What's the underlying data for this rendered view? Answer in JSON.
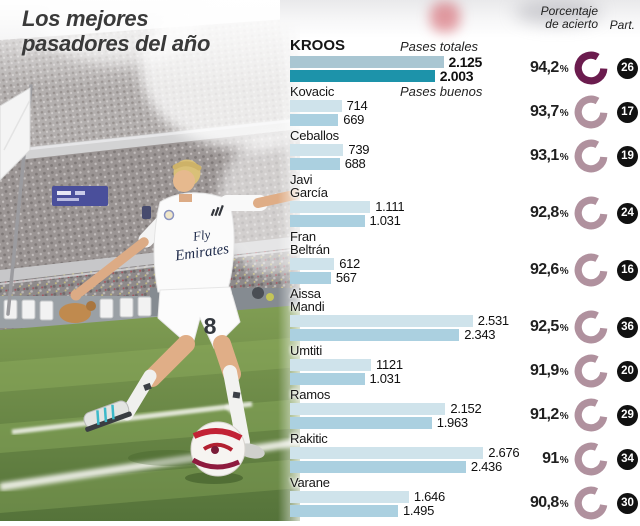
{
  "title": {
    "line1": "Los mejores",
    "line2": "pasadores del año"
  },
  "header": {
    "percent_line1": "Porcentaje",
    "percent_line2": "de acierto",
    "part": "Part."
  },
  "percent_symbol": "%",
  "photo": {
    "jersey_sponsor_line1": "Fly",
    "jersey_sponsor_line2": "Emirates",
    "shorts_number": "8"
  },
  "colors": {
    "bar_totales": "#cfe3eb",
    "bar_buenos": "#abd0e0",
    "bar_totales_highlight": "#a9c6d2",
    "bar_buenos_highlight": "#1d93aa",
    "ring": "#b0919e",
    "ring_highlight": "#6b1c4e",
    "badge_bg": "#111111",
    "badge_text": "#ffffff"
  },
  "chart": {
    "players": [
      {
        "name_lines": [
          "KROOS"
        ],
        "annotation": "Pases totales",
        "totales_label": "2.125",
        "buenos_label": "2.003",
        "totales": 2125,
        "buenos": 2003,
        "pct_label": "94,2",
        "pct": 94.2,
        "part": "26",
        "highlight": true
      },
      {
        "name_lines": [
          "Kovacic"
        ],
        "annotation": "Pases buenos",
        "totales_label": "714",
        "buenos_label": "669",
        "totales": 714,
        "buenos": 669,
        "pct_label": "93,7",
        "pct": 93.7,
        "part": "17",
        "highlight": false
      },
      {
        "name_lines": [
          "Ceballos"
        ],
        "totales_label": "739",
        "buenos_label": "688",
        "totales": 739,
        "buenos": 688,
        "pct_label": "93,1",
        "pct": 93.1,
        "part": "19",
        "highlight": false
      },
      {
        "name_lines": [
          "Javi",
          "García"
        ],
        "totales_label": "1.111",
        "buenos_label": "1.031",
        "totales": 1111,
        "buenos": 1031,
        "pct_label": "92,8",
        "pct": 92.8,
        "part": "24",
        "highlight": false
      },
      {
        "name_lines": [
          "Fran",
          "Beltrán"
        ],
        "totales_label": "612",
        "buenos_label": "567",
        "totales": 612,
        "buenos": 567,
        "pct_label": "92,6",
        "pct": 92.6,
        "part": "16",
        "highlight": false
      },
      {
        "name_lines": [
          "Aissa",
          "Mandi"
        ],
        "totales_label": "2.531",
        "buenos_label": "2.343",
        "totales": 2531,
        "buenos": 2343,
        "pct_label": "92,5",
        "pct": 92.5,
        "part": "36",
        "highlight": false
      },
      {
        "name_lines": [
          "Umtiti"
        ],
        "totales_label": "1121",
        "buenos_label": "1.031",
        "totales": 1121,
        "buenos": 1031,
        "pct_label": "91,9",
        "pct": 91.9,
        "part": "20",
        "highlight": false
      },
      {
        "name_lines": [
          "Ramos"
        ],
        "totales_label": "2.152",
        "buenos_label": "1.963",
        "totales": 2152,
        "buenos": 1963,
        "pct_label": "91,2",
        "pct": 91.2,
        "part": "29",
        "highlight": false
      },
      {
        "name_lines": [
          "Rakitic"
        ],
        "totales_label": "2.676",
        "buenos_label": "2.436",
        "totales": 2676,
        "buenos": 2436,
        "pct_label": "91",
        "pct": 91,
        "part": "34",
        "highlight": false
      },
      {
        "name_lines": [
          "Varane"
        ],
        "totales_label": "1.646",
        "buenos_label": "1.495",
        "totales": 1646,
        "buenos": 1495,
        "pct_label": "90,8",
        "pct": 90.8,
        "part": "30",
        "highlight": false
      }
    ]
  },
  "chart_data": {
    "type": "bar",
    "orientation": "horizontal",
    "title": "Los mejores pasadores del año",
    "categories": [
      "Kroos",
      "Kovacic",
      "Ceballos",
      "Javi García",
      "Fran Beltrán",
      "Aissa Mandi",
      "Umtiti",
      "Ramos",
      "Rakitic",
      "Varane"
    ],
    "series": [
      {
        "name": "Pases totales",
        "values": [
          2125,
          714,
          739,
          1111,
          612,
          2531,
          1121,
          2152,
          2676,
          1646
        ]
      },
      {
        "name": "Pases buenos",
        "values": [
          2003,
          669,
          688,
          1031,
          567,
          2343,
          1031,
          1963,
          2436,
          1495
        ]
      }
    ],
    "porcentaje_de_acierto": [
      94.2,
      93.7,
      93.1,
      92.8,
      92.6,
      92.5,
      91.9,
      91.2,
      91,
      90.8
    ],
    "partidos": [
      26,
      17,
      19,
      24,
      16,
      36,
      20,
      29,
      34,
      30
    ],
    "xlim": [
      0,
      2700
    ],
    "grid": false,
    "legend_position": "inline-first-rows"
  }
}
